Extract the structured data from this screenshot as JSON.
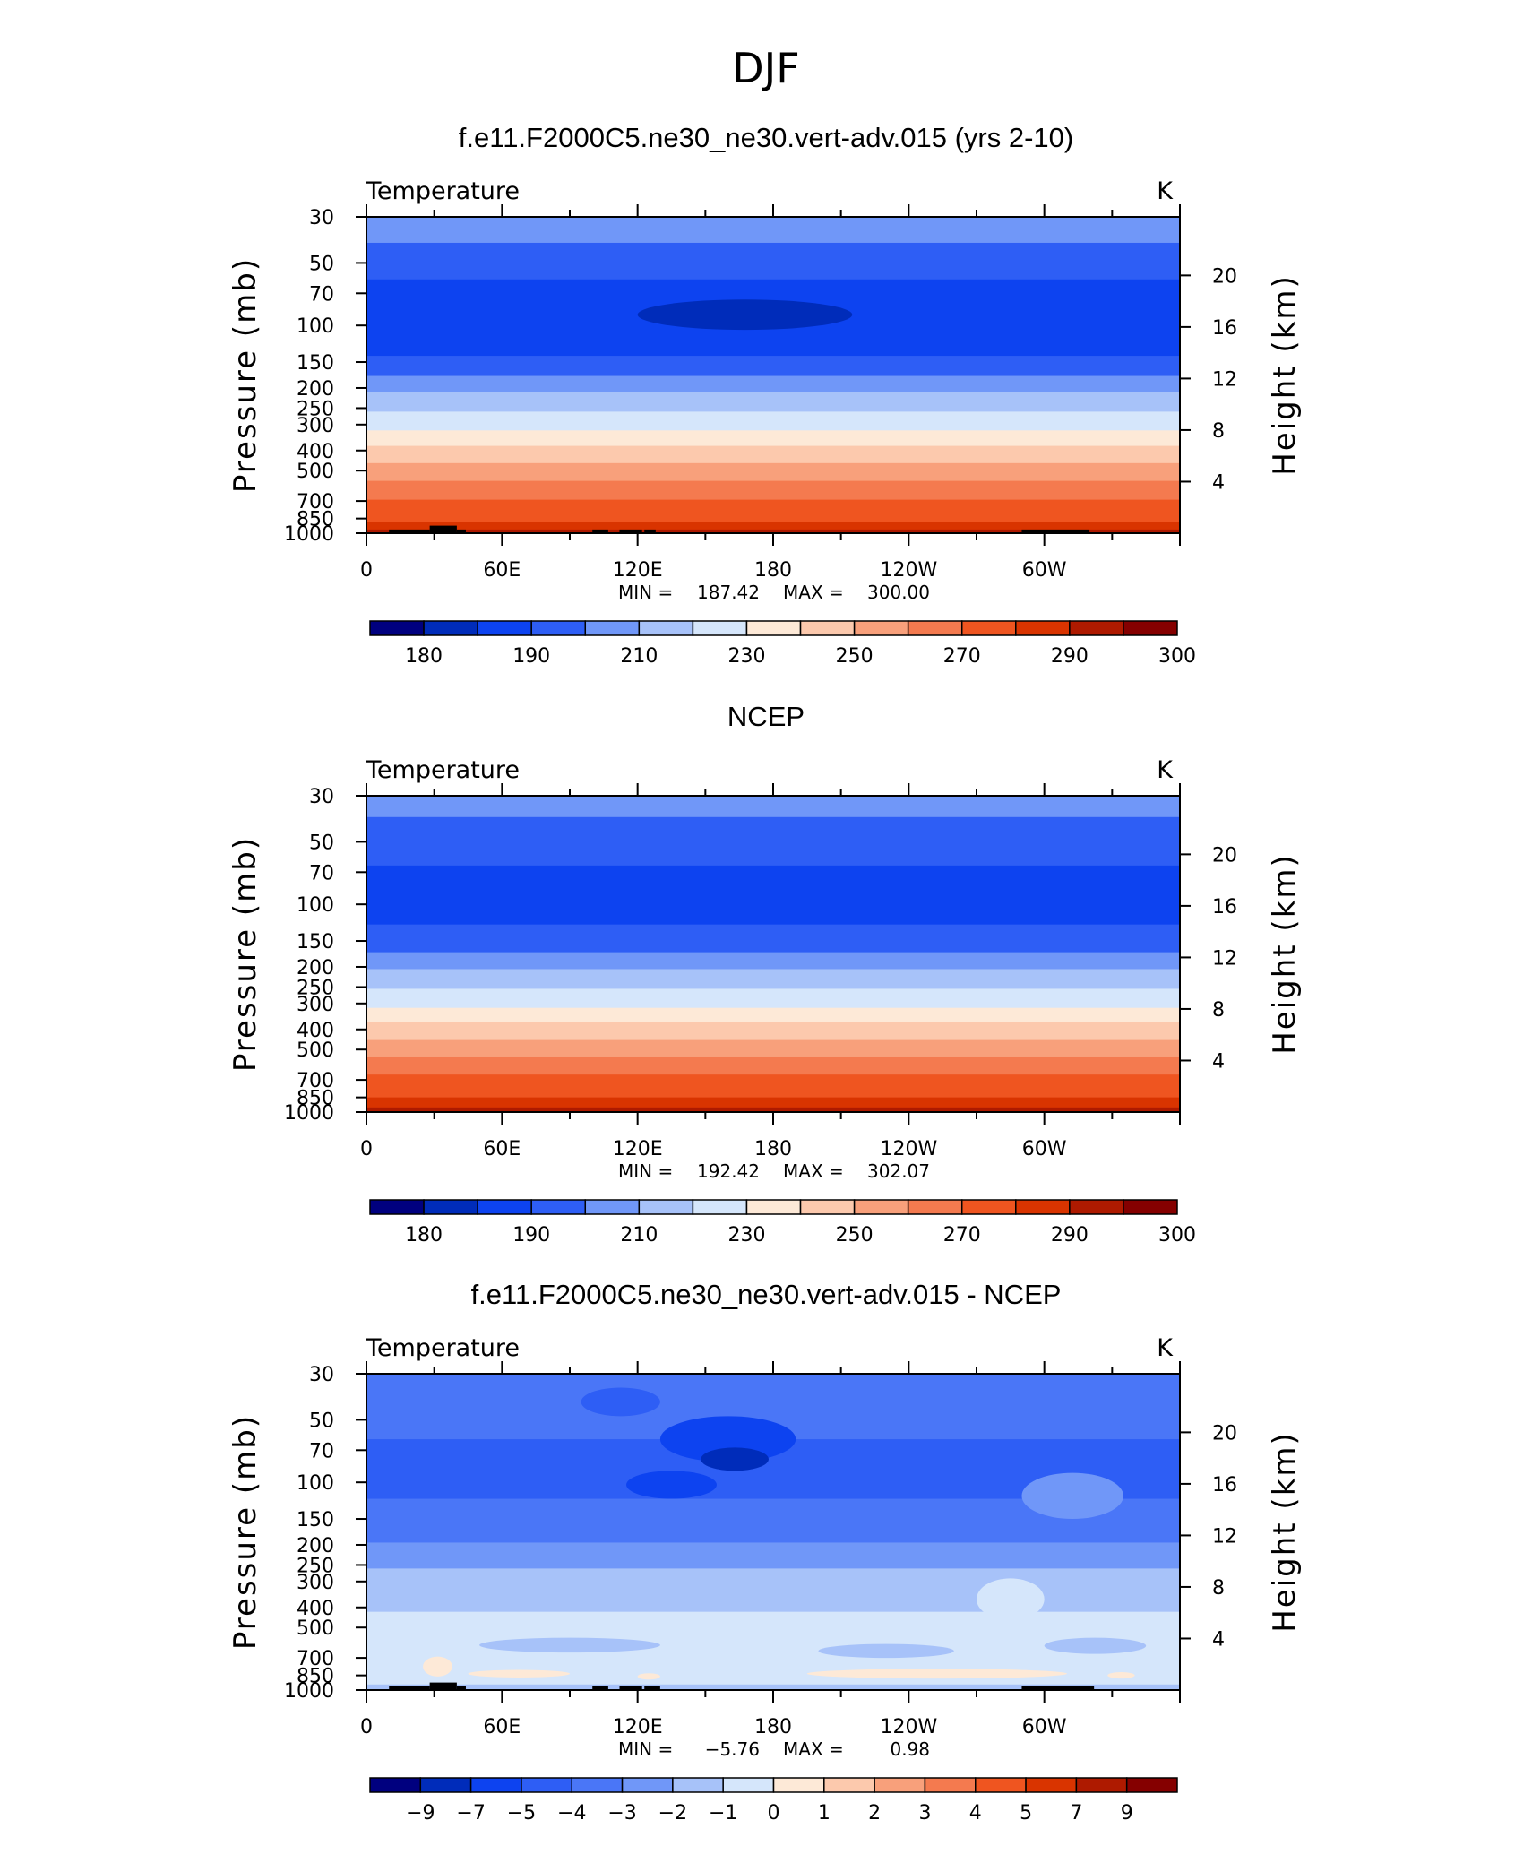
{
  "figure": {
    "title": "DJF"
  },
  "chart_data": [
    {
      "type": "heatmap",
      "title": "f.e11.F2000C5.ne30_ne30.vert-adv.015 (yrs 2-10)",
      "variable": "Temperature",
      "units": "K",
      "ylabel": "Pressure  (mb)",
      "ylabel_right": "Height  (km)",
      "x_ticks": [
        "0",
        "60E",
        "120E",
        "180",
        "120W",
        "60W"
      ],
      "y_ticks": [
        "30",
        "50",
        "70",
        "100",
        "150",
        "200",
        "250",
        "300",
        "400",
        "500",
        "700",
        "850",
        "1000"
      ],
      "y_ticks_right": [
        "20",
        "16",
        "12",
        "8",
        "4"
      ],
      "stats": {
        "min_label": "MIN",
        "min": "187.42",
        "max_label": "MAX",
        "max": "300.00"
      },
      "colorbar_labels": [
        "180",
        "190",
        "210",
        "230",
        "250",
        "270",
        "290",
        "300"
      ],
      "colorbar_colors": [
        "#00007f",
        "#002cba",
        "#0d43f0",
        "#2e5ef5",
        "#7097f8",
        "#a7c2f9",
        "#d5e6fb",
        "#fde9d7",
        "#fcc9ad",
        "#f8a07b",
        "#f47a4f",
        "#ef5520",
        "#d93400",
        "#ae1a00",
        "#850000"
      ],
      "bands": [
        {
          "p": 30,
          "level": 4
        },
        {
          "p": 40,
          "level": 3
        },
        {
          "p": 60,
          "level": 2
        },
        {
          "p": 140,
          "level": 3
        },
        {
          "p": 175,
          "level": 4
        },
        {
          "p": 210,
          "level": 5
        },
        {
          "p": 260,
          "level": 6
        },
        {
          "p": 320,
          "level": 7
        },
        {
          "p": 380,
          "level": 8
        },
        {
          "p": 460,
          "level": 9
        },
        {
          "p": 560,
          "level": 10
        },
        {
          "p": 690,
          "level": 11
        },
        {
          "p": 880,
          "level": 12
        },
        {
          "p": 960,
          "level": 13
        }
      ],
      "anomalies": [
        {
          "shape": "lens",
          "lon": [
            120,
            215
          ],
          "p_top": 75,
          "p_bottom": 105,
          "level": 1
        }
      ],
      "terrain": [
        {
          "lon": [
            10,
            28
          ],
          "p_top": 960
        },
        {
          "lon": [
            28,
            40
          ],
          "p_top": 920
        },
        {
          "lon": [
            40,
            44
          ],
          "p_top": 960
        },
        {
          "lon": [
            100,
            107
          ],
          "p_top": 960
        },
        {
          "lon": [
            112,
            122
          ],
          "p_top": 960
        },
        {
          "lon": [
            123,
            128
          ],
          "p_top": 960
        },
        {
          "lon": [
            290,
            320
          ],
          "p_top": 960
        }
      ]
    },
    {
      "type": "heatmap",
      "title": "NCEP",
      "variable": "Temperature",
      "units": "K",
      "ylabel": "Pressure  (mb)",
      "ylabel_right": "Height  (km)",
      "x_ticks": [
        "0",
        "60E",
        "120E",
        "180",
        "120W",
        "60W"
      ],
      "y_ticks": [
        "30",
        "50",
        "70",
        "100",
        "150",
        "200",
        "250",
        "300",
        "400",
        "500",
        "700",
        "850",
        "1000"
      ],
      "y_ticks_right": [
        "20",
        "16",
        "12",
        "8",
        "4"
      ],
      "stats": {
        "min_label": "MIN",
        "min": "192.42",
        "max_label": "MAX",
        "max": "302.07"
      },
      "colorbar_labels": [
        "180",
        "190",
        "210",
        "230",
        "250",
        "270",
        "290",
        "300"
      ],
      "colorbar_colors": [
        "#00007f",
        "#002cba",
        "#0d43f0",
        "#2e5ef5",
        "#7097f8",
        "#a7c2f9",
        "#d5e6fb",
        "#fde9d7",
        "#fcc9ad",
        "#f8a07b",
        "#f47a4f",
        "#ef5520",
        "#d93400",
        "#ae1a00",
        "#850000"
      ],
      "bands": [
        {
          "p": 30,
          "level": 4
        },
        {
          "p": 38,
          "level": 3
        },
        {
          "p": 65,
          "level": 2
        },
        {
          "p": 125,
          "level": 3
        },
        {
          "p": 170,
          "level": 4
        },
        {
          "p": 205,
          "level": 5
        },
        {
          "p": 255,
          "level": 6
        },
        {
          "p": 315,
          "level": 7
        },
        {
          "p": 370,
          "level": 8
        },
        {
          "p": 450,
          "level": 9
        },
        {
          "p": 540,
          "level": 10
        },
        {
          "p": 660,
          "level": 11
        },
        {
          "p": 850,
          "level": 12
        },
        {
          "p": 950,
          "level": 13
        }
      ],
      "anomalies": [],
      "terrain": []
    },
    {
      "type": "heatmap",
      "title": "f.e11.F2000C5.ne30_ne30.vert-adv.015 - NCEP",
      "variable": "Temperature",
      "units": "K",
      "ylabel": "Pressure  (mb)",
      "ylabel_right": "Height  (km)",
      "x_ticks": [
        "0",
        "60E",
        "120E",
        "180",
        "120W",
        "60W"
      ],
      "y_ticks": [
        "30",
        "50",
        "70",
        "100",
        "150",
        "200",
        "250",
        "300",
        "400",
        "500",
        "700",
        "850",
        "1000"
      ],
      "y_ticks_right": [
        "20",
        "16",
        "12",
        "8",
        "4"
      ],
      "stats": {
        "min_label": "MIN",
        "min": "−5.76",
        "max_label": "MAX",
        "max": "0.98"
      },
      "colorbar_labels": [
        "−9",
        "−7",
        "−5",
        "−4",
        "−3",
        "−2",
        "−1",
        "0",
        "1",
        "2",
        "3",
        "4",
        "5",
        "7",
        "9"
      ],
      "colorbar_colors": [
        "#00007f",
        "#002cba",
        "#0d43f0",
        "#2e5ef5",
        "#4a76f7",
        "#7097f8",
        "#a7c2f9",
        "#d5e6fb",
        "#fde9d7",
        "#fcc9ad",
        "#f8a07b",
        "#f47a4f",
        "#ef5520",
        "#d93400",
        "#ae1a00",
        "#850000"
      ],
      "bands": [
        {
          "p": 30,
          "level": 4
        },
        {
          "p": 62,
          "level": 3
        },
        {
          "p": 120,
          "level": 4
        },
        {
          "p": 195,
          "level": 5
        },
        {
          "p": 260,
          "level": 6
        },
        {
          "p": 420,
          "level": 7
        },
        {
          "p": 940,
          "level": 6
        }
      ],
      "anomalies": [
        {
          "shape": "lens",
          "lon": [
            95,
            130
          ],
          "p_top": 35,
          "p_bottom": 48,
          "level": 3
        },
        {
          "shape": "lens",
          "lon": [
            130,
            190
          ],
          "p_top": 48,
          "p_bottom": 80,
          "level": 2
        },
        {
          "shape": "lens",
          "lon": [
            115,
            155
          ],
          "p_top": 88,
          "p_bottom": 120,
          "level": 2
        },
        {
          "shape": "lens",
          "lon": [
            148,
            178
          ],
          "p_top": 68,
          "p_bottom": 88,
          "level": 1
        },
        {
          "shape": "lens",
          "lon": [
            290,
            335
          ],
          "p_top": 90,
          "p_bottom": 150,
          "level": 5
        },
        {
          "shape": "lens",
          "lon": [
            270,
            300
          ],
          "p_top": 290,
          "p_bottom": 460,
          "level": 7
        },
        {
          "shape": "lens",
          "lon": [
            50,
            130
          ],
          "p_top": 560,
          "p_bottom": 660,
          "level": 6
        },
        {
          "shape": "lens",
          "lon": [
            200,
            260
          ],
          "p_top": 600,
          "p_bottom": 700,
          "level": 6
        },
        {
          "shape": "lens",
          "lon": [
            300,
            345
          ],
          "p_top": 560,
          "p_bottom": 670,
          "level": 6
        },
        {
          "shape": "lens",
          "lon": [
            25,
            38
          ],
          "p_top": 690,
          "p_bottom": 860,
          "level": 8
        },
        {
          "shape": "lens",
          "lon": [
            45,
            90
          ],
          "p_top": 800,
          "p_bottom": 870,
          "level": 8
        },
        {
          "shape": "lens",
          "lon": [
            120,
            130
          ],
          "p_top": 830,
          "p_bottom": 890,
          "level": 8
        },
        {
          "shape": "lens",
          "lon": [
            195,
            310
          ],
          "p_top": 790,
          "p_bottom": 880,
          "level": 8
        },
        {
          "shape": "lens",
          "lon": [
            328,
            340
          ],
          "p_top": 820,
          "p_bottom": 880,
          "level": 8
        }
      ],
      "terrain": [
        {
          "lon": [
            10,
            28
          ],
          "p_top": 960
        },
        {
          "lon": [
            28,
            40
          ],
          "p_top": 920
        },
        {
          "lon": [
            40,
            44
          ],
          "p_top": 960
        },
        {
          "lon": [
            100,
            107
          ],
          "p_top": 960
        },
        {
          "lon": [
            112,
            122
          ],
          "p_top": 960
        },
        {
          "lon": [
            123,
            130
          ],
          "p_top": 960
        },
        {
          "lon": [
            290,
            322
          ],
          "p_top": 960
        }
      ]
    }
  ]
}
